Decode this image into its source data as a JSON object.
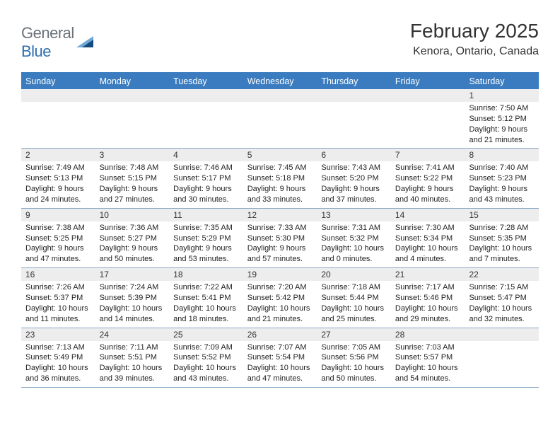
{
  "brand": {
    "part1": "General",
    "part2": "Blue"
  },
  "title": "February 2025",
  "location": "Kenora, Ontario, Canada",
  "colors": {
    "header_bg": "#3a7cbf",
    "header_text": "#ffffff",
    "row_divider": "#8aa9c8",
    "daynum_bg": "#ededed",
    "text": "#222222",
    "logo_gray": "#6b7278",
    "logo_blue": "#2f6fb0",
    "logo_tri_light": "#6fa9db",
    "logo_tri_dark": "#164b7a"
  },
  "weekdays": [
    "Sunday",
    "Monday",
    "Tuesday",
    "Wednesday",
    "Thursday",
    "Friday",
    "Saturday"
  ],
  "weeks": [
    [
      {
        "n": "",
        "sr": "",
        "ss": "",
        "dl": ""
      },
      {
        "n": "",
        "sr": "",
        "ss": "",
        "dl": ""
      },
      {
        "n": "",
        "sr": "",
        "ss": "",
        "dl": ""
      },
      {
        "n": "",
        "sr": "",
        "ss": "",
        "dl": ""
      },
      {
        "n": "",
        "sr": "",
        "ss": "",
        "dl": ""
      },
      {
        "n": "",
        "sr": "",
        "ss": "",
        "dl": ""
      },
      {
        "n": "1",
        "sr": "Sunrise: 7:50 AM",
        "ss": "Sunset: 5:12 PM",
        "dl": "Daylight: 9 hours and 21 minutes."
      }
    ],
    [
      {
        "n": "2",
        "sr": "Sunrise: 7:49 AM",
        "ss": "Sunset: 5:13 PM",
        "dl": "Daylight: 9 hours and 24 minutes."
      },
      {
        "n": "3",
        "sr": "Sunrise: 7:48 AM",
        "ss": "Sunset: 5:15 PM",
        "dl": "Daylight: 9 hours and 27 minutes."
      },
      {
        "n": "4",
        "sr": "Sunrise: 7:46 AM",
        "ss": "Sunset: 5:17 PM",
        "dl": "Daylight: 9 hours and 30 minutes."
      },
      {
        "n": "5",
        "sr": "Sunrise: 7:45 AM",
        "ss": "Sunset: 5:18 PM",
        "dl": "Daylight: 9 hours and 33 minutes."
      },
      {
        "n": "6",
        "sr": "Sunrise: 7:43 AM",
        "ss": "Sunset: 5:20 PM",
        "dl": "Daylight: 9 hours and 37 minutes."
      },
      {
        "n": "7",
        "sr": "Sunrise: 7:41 AM",
        "ss": "Sunset: 5:22 PM",
        "dl": "Daylight: 9 hours and 40 minutes."
      },
      {
        "n": "8",
        "sr": "Sunrise: 7:40 AM",
        "ss": "Sunset: 5:23 PM",
        "dl": "Daylight: 9 hours and 43 minutes."
      }
    ],
    [
      {
        "n": "9",
        "sr": "Sunrise: 7:38 AM",
        "ss": "Sunset: 5:25 PM",
        "dl": "Daylight: 9 hours and 47 minutes."
      },
      {
        "n": "10",
        "sr": "Sunrise: 7:36 AM",
        "ss": "Sunset: 5:27 PM",
        "dl": "Daylight: 9 hours and 50 minutes."
      },
      {
        "n": "11",
        "sr": "Sunrise: 7:35 AM",
        "ss": "Sunset: 5:29 PM",
        "dl": "Daylight: 9 hours and 53 minutes."
      },
      {
        "n": "12",
        "sr": "Sunrise: 7:33 AM",
        "ss": "Sunset: 5:30 PM",
        "dl": "Daylight: 9 hours and 57 minutes."
      },
      {
        "n": "13",
        "sr": "Sunrise: 7:31 AM",
        "ss": "Sunset: 5:32 PM",
        "dl": "Daylight: 10 hours and 0 minutes."
      },
      {
        "n": "14",
        "sr": "Sunrise: 7:30 AM",
        "ss": "Sunset: 5:34 PM",
        "dl": "Daylight: 10 hours and 4 minutes."
      },
      {
        "n": "15",
        "sr": "Sunrise: 7:28 AM",
        "ss": "Sunset: 5:35 PM",
        "dl": "Daylight: 10 hours and 7 minutes."
      }
    ],
    [
      {
        "n": "16",
        "sr": "Sunrise: 7:26 AM",
        "ss": "Sunset: 5:37 PM",
        "dl": "Daylight: 10 hours and 11 minutes."
      },
      {
        "n": "17",
        "sr": "Sunrise: 7:24 AM",
        "ss": "Sunset: 5:39 PM",
        "dl": "Daylight: 10 hours and 14 minutes."
      },
      {
        "n": "18",
        "sr": "Sunrise: 7:22 AM",
        "ss": "Sunset: 5:41 PM",
        "dl": "Daylight: 10 hours and 18 minutes."
      },
      {
        "n": "19",
        "sr": "Sunrise: 7:20 AM",
        "ss": "Sunset: 5:42 PM",
        "dl": "Daylight: 10 hours and 21 minutes."
      },
      {
        "n": "20",
        "sr": "Sunrise: 7:18 AM",
        "ss": "Sunset: 5:44 PM",
        "dl": "Daylight: 10 hours and 25 minutes."
      },
      {
        "n": "21",
        "sr": "Sunrise: 7:17 AM",
        "ss": "Sunset: 5:46 PM",
        "dl": "Daylight: 10 hours and 29 minutes."
      },
      {
        "n": "22",
        "sr": "Sunrise: 7:15 AM",
        "ss": "Sunset: 5:47 PM",
        "dl": "Daylight: 10 hours and 32 minutes."
      }
    ],
    [
      {
        "n": "23",
        "sr": "Sunrise: 7:13 AM",
        "ss": "Sunset: 5:49 PM",
        "dl": "Daylight: 10 hours and 36 minutes."
      },
      {
        "n": "24",
        "sr": "Sunrise: 7:11 AM",
        "ss": "Sunset: 5:51 PM",
        "dl": "Daylight: 10 hours and 39 minutes."
      },
      {
        "n": "25",
        "sr": "Sunrise: 7:09 AM",
        "ss": "Sunset: 5:52 PM",
        "dl": "Daylight: 10 hours and 43 minutes."
      },
      {
        "n": "26",
        "sr": "Sunrise: 7:07 AM",
        "ss": "Sunset: 5:54 PM",
        "dl": "Daylight: 10 hours and 47 minutes."
      },
      {
        "n": "27",
        "sr": "Sunrise: 7:05 AM",
        "ss": "Sunset: 5:56 PM",
        "dl": "Daylight: 10 hours and 50 minutes."
      },
      {
        "n": "28",
        "sr": "Sunrise: 7:03 AM",
        "ss": "Sunset: 5:57 PM",
        "dl": "Daylight: 10 hours and 54 minutes."
      },
      {
        "n": "",
        "sr": "",
        "ss": "",
        "dl": ""
      }
    ]
  ]
}
